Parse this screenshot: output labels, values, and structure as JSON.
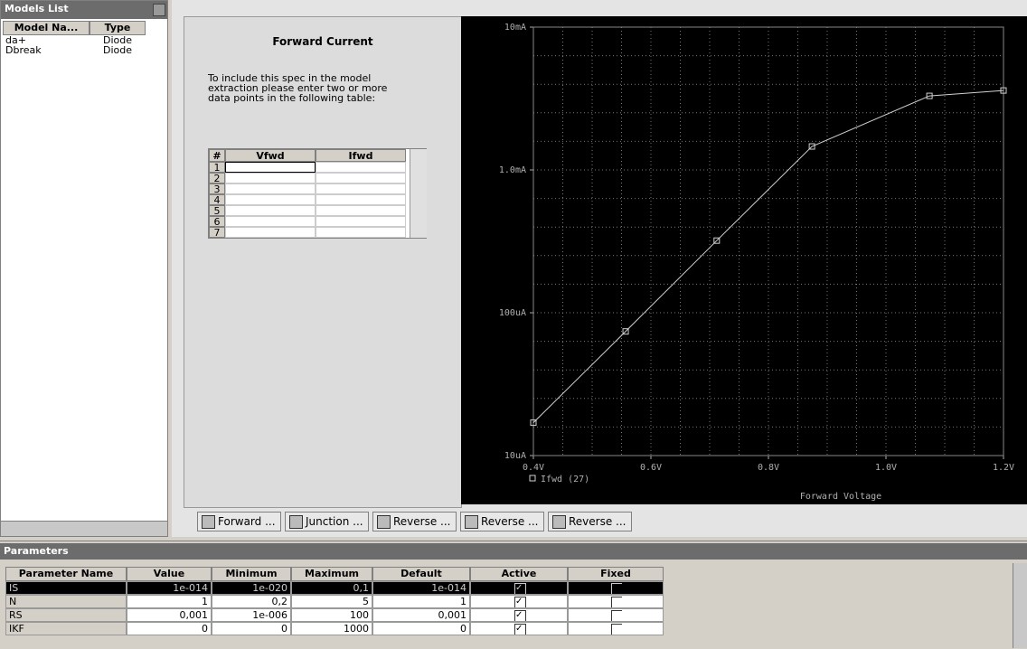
{
  "models_list": {
    "title": "Models List",
    "columns": [
      "Model Na...",
      "Type"
    ],
    "rows": [
      [
        "da+",
        "Diode"
      ],
      [
        "Dbreak",
        "Diode"
      ]
    ]
  },
  "spec_panel": {
    "title": "Forward Current",
    "instructions": [
      "To include this spec in the model",
      "extraction please enter two or more",
      "data points in the following table:"
    ],
    "table": {
      "columns": [
        "#",
        "Vfwd",
        "Ifwd"
      ],
      "row_numbers": [
        "1",
        "2",
        "3",
        "4",
        "5",
        "6",
        "7"
      ]
    }
  },
  "chart_data": {
    "type": "line",
    "x_label": "Forward Voltage",
    "xlim": [
      0.4,
      1.2
    ],
    "xticks": [
      {
        "value": 0.4,
        "label": "0.4V"
      },
      {
        "value": 0.6,
        "label": "0.6V"
      },
      {
        "value": 0.8,
        "label": "0.8V"
      },
      {
        "value": 1.0,
        "label": "1.0V"
      },
      {
        "value": 1.2,
        "label": "1.2V"
      }
    ],
    "ylim": [
      1e-05,
      0.01
    ],
    "log_y": true,
    "yticks": [
      {
        "value": 1e-05,
        "label": "10uA"
      },
      {
        "value": 0.0001,
        "label": "100uA"
      },
      {
        "value": 0.001,
        "label": "1.0mA"
      },
      {
        "value": 0.01,
        "label": "10mA"
      }
    ],
    "series": [
      {
        "name": "Ifwd (27)",
        "color": "#d0d0d0",
        "x": [
          0.4,
          0.557,
          0.712,
          0.874,
          1.074,
          1.2
        ],
        "values": [
          1.7e-05,
          7.4e-05,
          0.00032,
          0.00146,
          0.0033,
          0.0036
        ]
      }
    ]
  },
  "tabs": [
    "Forward ...",
    "Junction ...",
    "Reverse ...",
    "Reverse ...",
    "Reverse ..."
  ],
  "parameters": {
    "title": "Parameters",
    "columns": [
      "Parameter Name",
      "Value",
      "Minimum",
      "Maximum",
      "Default",
      "Active",
      "Fixed"
    ],
    "rows": [
      {
        "name": "IS",
        "value": "1e-014",
        "minimum": "1e-020",
        "maximum": "0,1",
        "default": "1e-014",
        "active": true,
        "fixed": false
      },
      {
        "name": "N",
        "value": "1",
        "minimum": "0,2",
        "maximum": "5",
        "default": "1",
        "active": true,
        "fixed": false
      },
      {
        "name": "RS",
        "value": "0,001",
        "minimum": "1e-006",
        "maximum": "100",
        "default": "0,001",
        "active": true,
        "fixed": false
      },
      {
        "name": "IKF",
        "value": "0",
        "minimum": "0",
        "maximum": "1000",
        "default": "0",
        "active": true,
        "fixed": false
      }
    ]
  }
}
